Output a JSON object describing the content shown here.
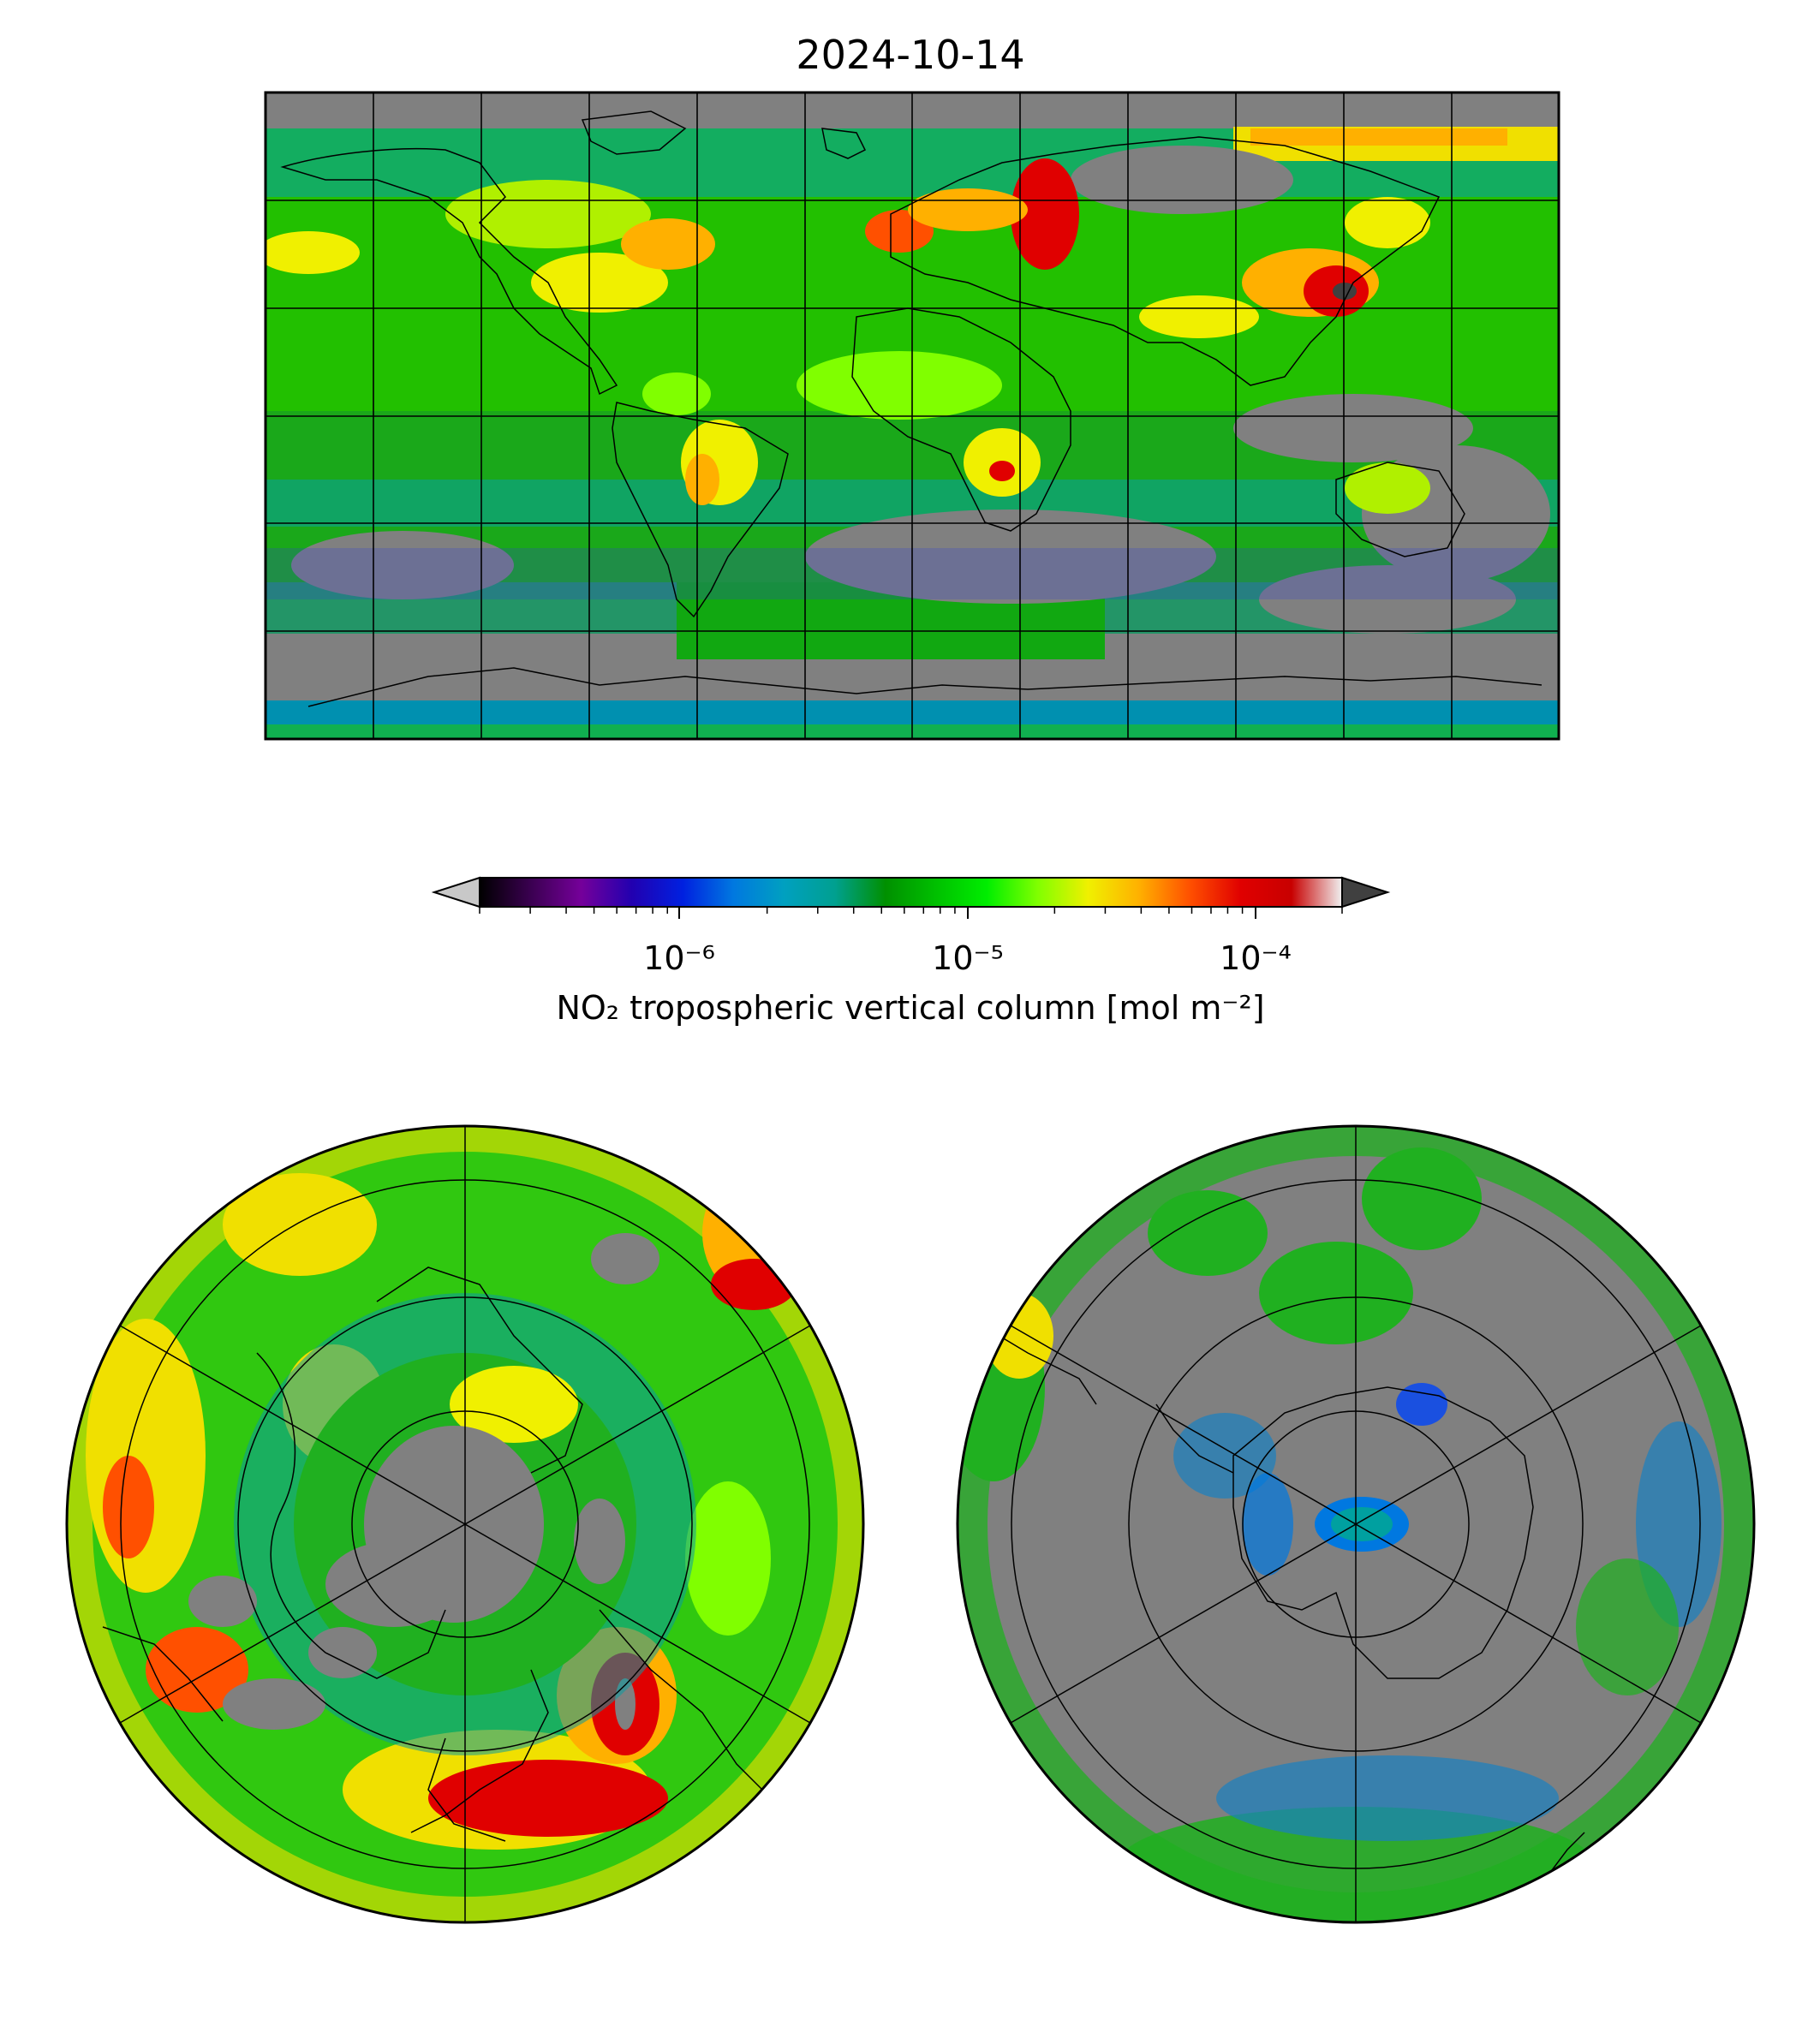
{
  "figure": {
    "title": "2024-10-14"
  },
  "colorbar": {
    "label": "NO₂ tropospheric vertical column [mol m⁻²]",
    "scale": "log",
    "extend": "both",
    "ticks": [
      {
        "value": 1e-06,
        "label": "10⁻⁶"
      },
      {
        "value": 1e-05,
        "label": "10⁻⁵"
      },
      {
        "value": 0.0001,
        "label": "10⁻⁴"
      }
    ],
    "colors": [
      "#000000",
      "#3a0050",
      "#75009a",
      "#2200b0",
      "#0020e0",
      "#0078e0",
      "#00a0c0",
      "#00a090",
      "#009000",
      "#00c000",
      "#00ee00",
      "#80ff00",
      "#f0f000",
      "#ffb000",
      "#ff5000",
      "#e00000",
      "#c80000",
      "#f0f0f0"
    ],
    "under_color": "#c8c8c8",
    "over_color": "#404040",
    "nodata_color": "#808080"
  },
  "panels": {
    "global": {
      "projection": "plate-carree",
      "gridlines": "meridians every 30°, parallels every 30°"
    },
    "north_polar": {
      "projection": "north-polar-stereographic"
    },
    "south_polar": {
      "projection": "south-polar-stereographic"
    }
  }
}
